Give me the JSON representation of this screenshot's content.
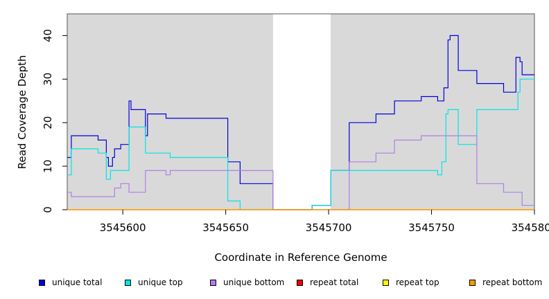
{
  "chart_data": {
    "type": "line",
    "title": "",
    "xlabel": "Coordinate in Reference Genome",
    "ylabel": "Read Coverage Depth",
    "xlim": [
      3545573,
      3545800
    ],
    "ylim": [
      0,
      45
    ],
    "xticks": [
      3545600,
      3545650,
      3545700,
      3545750,
      3545800
    ],
    "xtick_labels": [
      "3545600",
      "3545650",
      "3545700",
      "3545750",
      "3545800"
    ],
    "yticks": [
      0,
      10,
      20,
      30,
      40
    ],
    "ytick_labels": [
      "0",
      "10",
      "20",
      "30",
      "40"
    ],
    "shaded_regions": [
      [
        3545573,
        3545673
      ],
      [
        3545701,
        3545800
      ]
    ],
    "shade_color": "#d9d9d9",
    "grid": false,
    "legend_position": "bottom",
    "series": [
      {
        "name": "unique total",
        "color": "#0000dd",
        "x": [
          3545573,
          3545575,
          3545588,
          3545592,
          3545593,
          3545595,
          3545596,
          3545599,
          3545603,
          3545604,
          3545611,
          3545612,
          3545621,
          3545651,
          3545657,
          3545673,
          3545692,
          3545701,
          3545710,
          3545723,
          3545732,
          3545745,
          3545753,
          3545756,
          3545758,
          3545759,
          3545763,
          3545772,
          3545785,
          3545791,
          3545793,
          3545794,
          3545800
        ],
        "y": [
          12,
          17,
          16,
          12,
          10,
          12,
          14,
          15,
          25,
          23,
          17,
          22,
          21,
          11,
          6,
          0,
          1,
          9,
          20,
          22,
          25,
          26,
          25,
          28,
          39,
          40,
          32,
          29,
          27,
          35,
          34,
          31,
          31
        ]
      },
      {
        "name": "unique top",
        "color": "#00e5e5",
        "x": [
          3545573,
          3545575,
          3545588,
          3545592,
          3545594,
          3545603,
          3545611,
          3545623,
          3545651,
          3545657,
          3545673,
          3545692,
          3545701,
          3545750,
          3545753,
          3545755,
          3545757,
          3545758,
          3545763,
          3545772,
          3545790,
          3545792,
          3545793,
          3545800
        ],
        "y": [
          8,
          14,
          13,
          7,
          9,
          19,
          13,
          12,
          2,
          0,
          0,
          1,
          9,
          9,
          8,
          11,
          22,
          23,
          15,
          23,
          23,
          27,
          30,
          30
        ]
      },
      {
        "name": "unique bottom",
        "color": "#b07fe8",
        "x": [
          3545573,
          3545575,
          3545596,
          3545599,
          3545603,
          3545611,
          3545621,
          3545623,
          3545657,
          3545673,
          3545692,
          3545701,
          3545710,
          3545723,
          3545732,
          3545745,
          3545757,
          3545772,
          3545785,
          3545794,
          3545800
        ],
        "y": [
          4,
          3,
          5,
          6,
          4,
          9,
          8,
          9,
          9,
          0,
          0,
          0,
          11,
          13,
          16,
          17,
          17,
          6,
          4,
          1,
          1
        ]
      },
      {
        "name": "repeat total",
        "color": "#ee0000",
        "x": [
          3545573,
          3545800
        ],
        "y": [
          0,
          0
        ]
      },
      {
        "name": "repeat top",
        "color": "#ffff00",
        "x": [
          3545573,
          3545800
        ],
        "y": [
          0,
          0
        ]
      },
      {
        "name": "repeat bottom",
        "color": "#ff9900",
        "x": [
          3545573,
          3545800
        ],
        "y": [
          0,
          0
        ]
      }
    ]
  }
}
